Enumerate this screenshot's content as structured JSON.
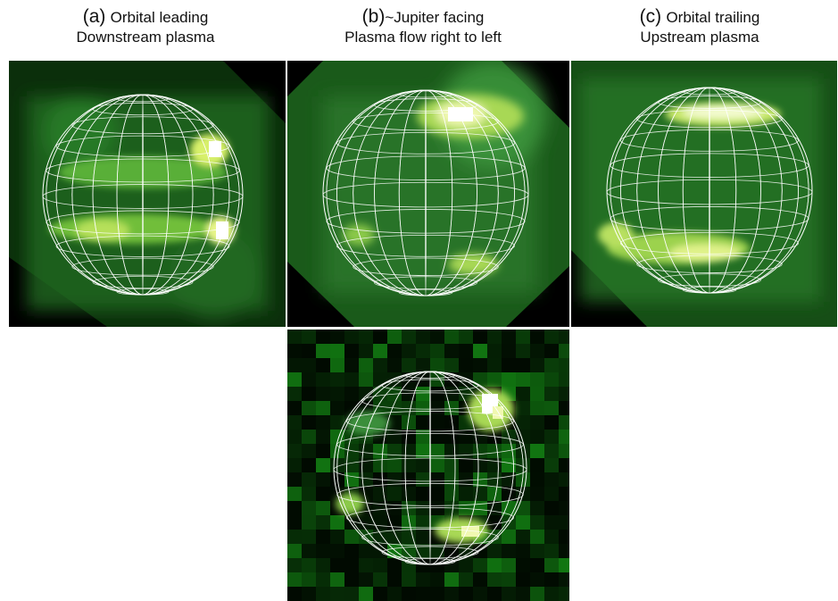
{
  "panels": [
    {
      "id": "a",
      "tag": "(a)",
      "line1": "Orbital leading",
      "line2": "Downstream plasma"
    },
    {
      "id": "b",
      "tag": "(b)",
      "line1": "~Jupiter facing",
      "line2": "Plasma flow right to left"
    },
    {
      "id": "c",
      "tag": "(c)",
      "line1": "Orbital trailing",
      "line2": "Upstream plasma"
    },
    {
      "id": "d",
      "tag": "",
      "line1": "",
      "line2": ""
    }
  ],
  "colors": {
    "background": "#000000",
    "emission_dim": "#0d3a0d",
    "emission_mid": "#2f8a2f",
    "emission_bright": "#d8f06a",
    "emission_peak": "#ffffff",
    "grid": "#ffffff",
    "page": "#ffffff"
  }
}
